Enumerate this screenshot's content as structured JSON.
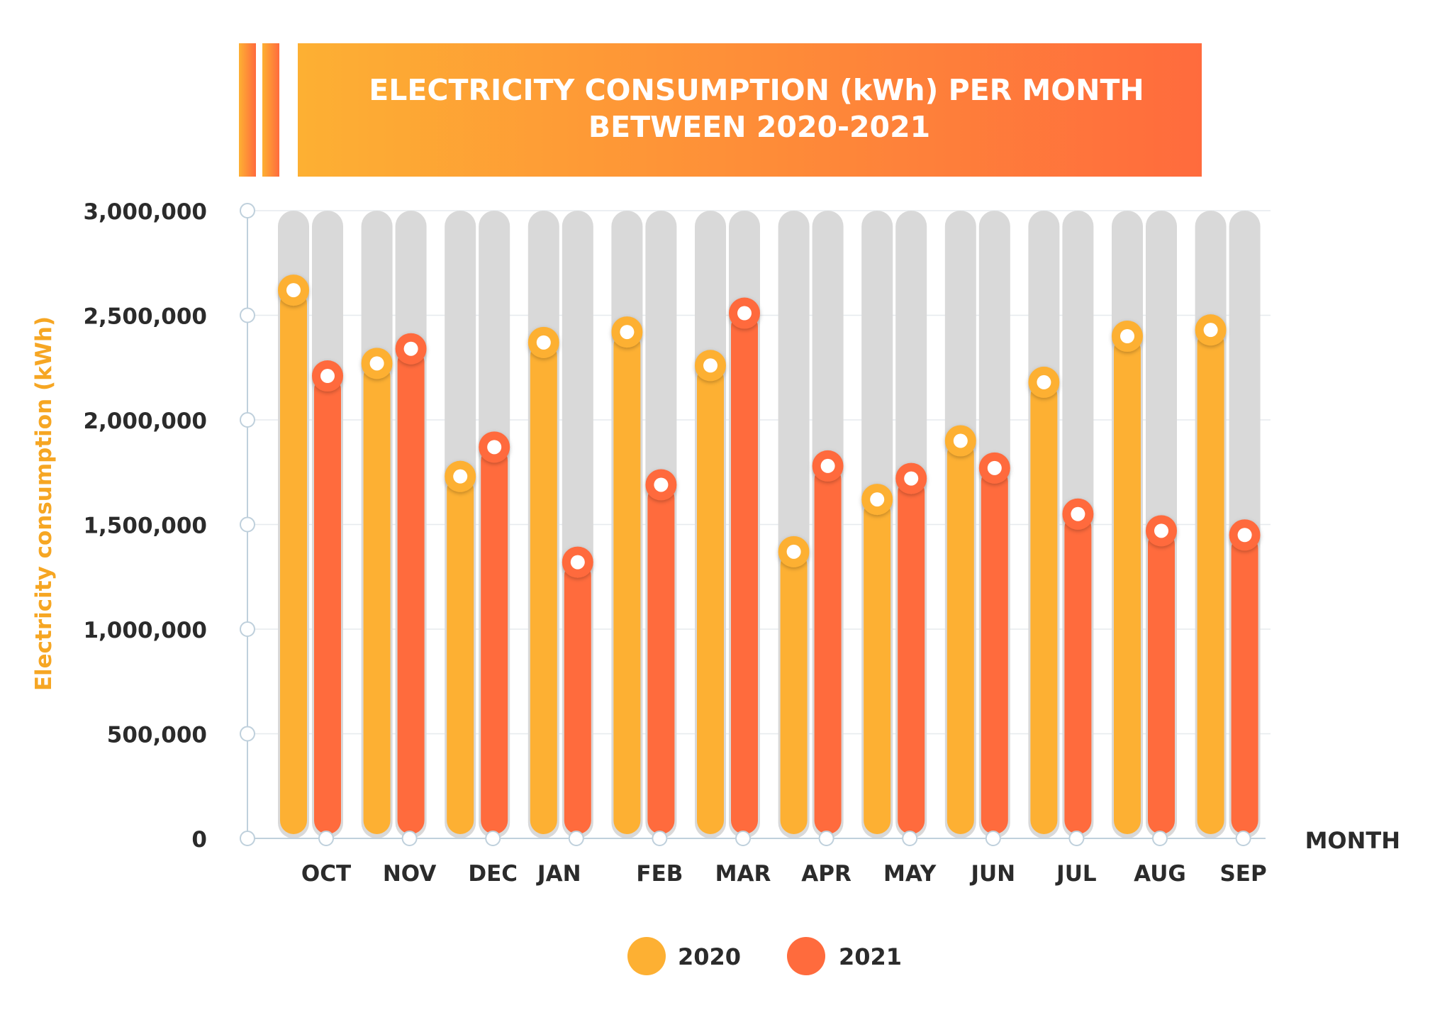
{
  "chart_data": {
    "type": "bar",
    "title_lines": [
      "ELECTRICITY CONSUMPTION (kWh) PER MONTH",
      "BETWEEN 2020-2021"
    ],
    "xlabel": "MONTH",
    "ylabel": "Electricity consumption (kWh)",
    "ylim": [
      0,
      3000000
    ],
    "yticks": [
      0,
      500000,
      1000000,
      1500000,
      2000000,
      2500000,
      3000000
    ],
    "ytick_labels": [
      "0",
      "500,000",
      "1,000,000",
      "1,500,000",
      "2,000,000",
      "2,500,000",
      "3,000,000"
    ],
    "categories": [
      "OCT",
      "NOV",
      "DEC",
      "JAN",
      "FEB",
      "MAR",
      "APR",
      "MAY",
      "JUN",
      "JUL",
      "AUG",
      "SEP"
    ],
    "series": [
      {
        "name": "2020",
        "color": "#FDB033",
        "values": [
          2620000,
          2270000,
          1730000,
          2370000,
          2420000,
          2260000,
          1370000,
          1620000,
          1900000,
          2180000,
          2400000,
          2430000
        ]
      },
      {
        "name": "2021",
        "color": "#FF6B3D",
        "values": [
          2210000,
          2340000,
          1870000,
          1320000,
          1690000,
          2510000,
          1780000,
          1720000,
          1770000,
          1550000,
          1470000,
          1450000
        ]
      }
    ],
    "grid": true,
    "legend_position": "bottom-center"
  },
  "colors": {
    "title_gradient_start": "#FDB033",
    "title_gradient_end": "#FF6B3D",
    "track": "#D9D9D9",
    "axis": "#BFD0DC",
    "ylabel": "#F6A623"
  }
}
